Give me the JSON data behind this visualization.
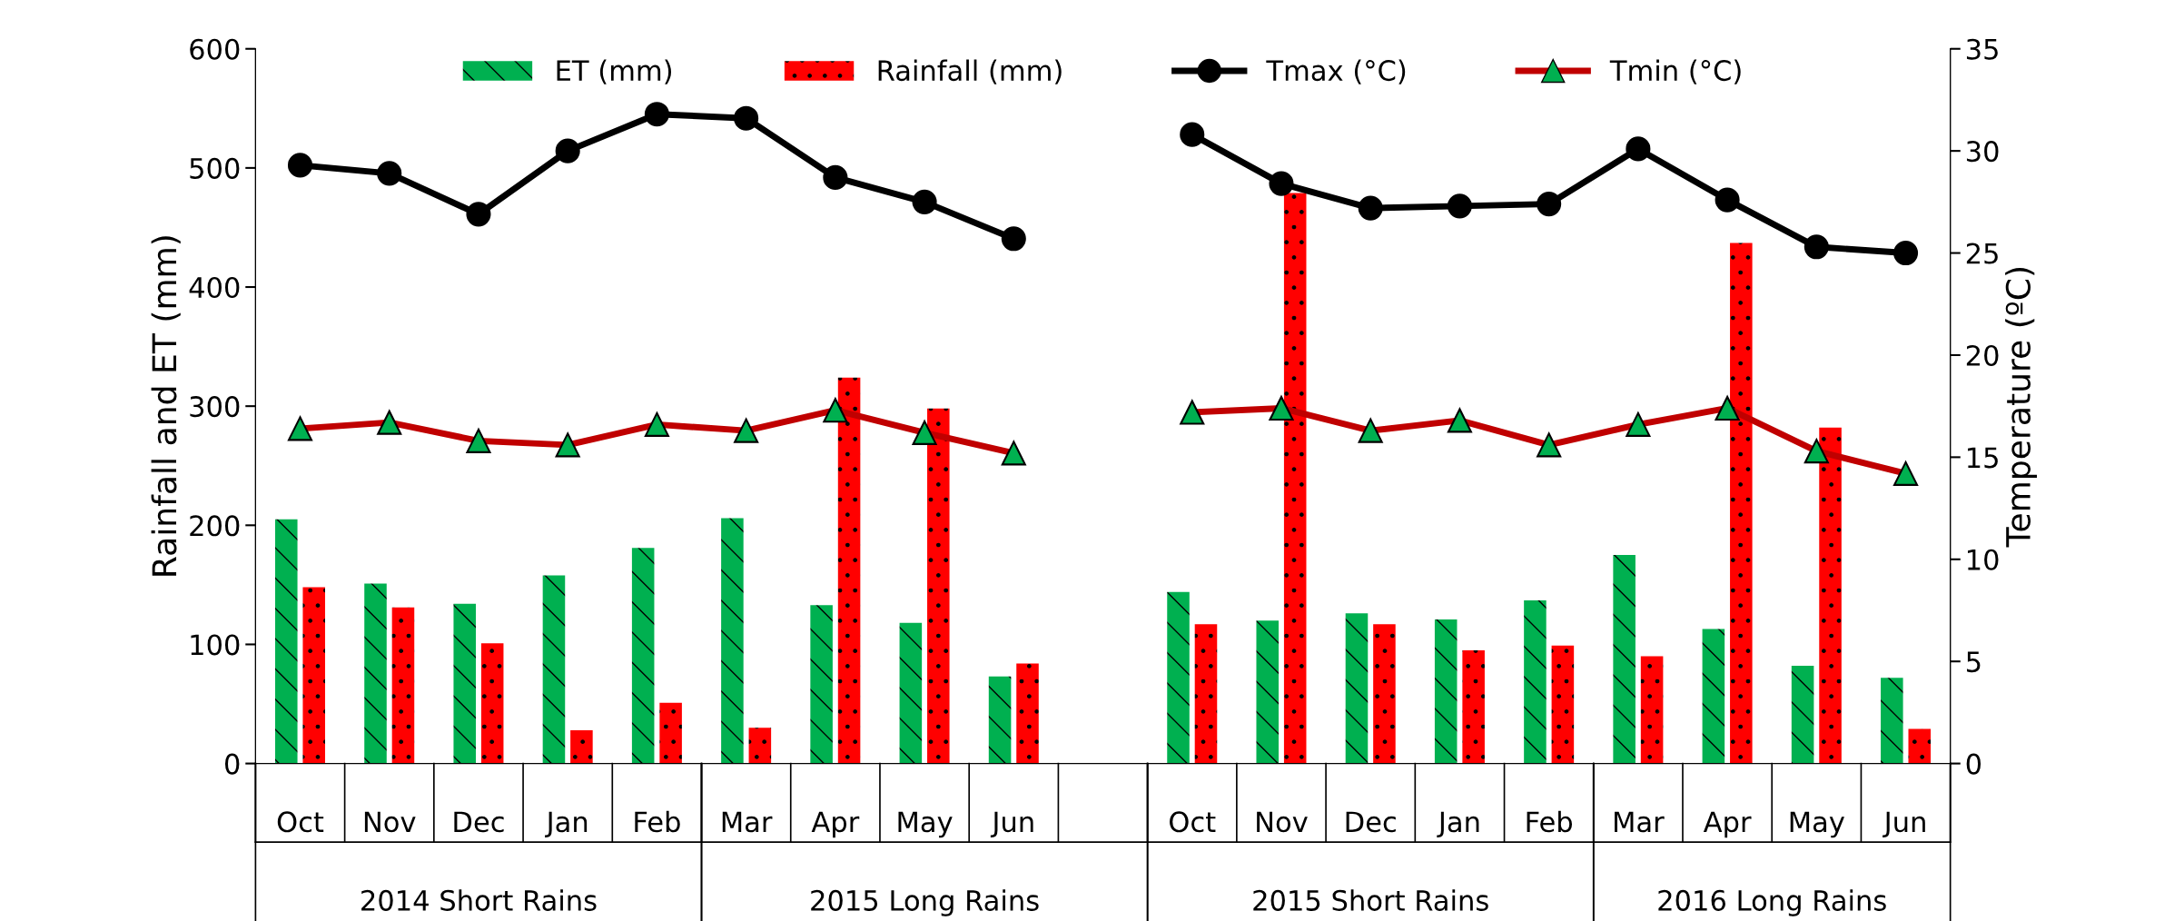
{
  "chart_data": {
    "type": "bar",
    "categories": [
      "Oct",
      "Nov",
      "Dec",
      "Jan",
      "Feb",
      "Mar",
      "Apr",
      "May",
      "Jun",
      null,
      "Oct",
      "Nov",
      "Dec",
      "Jan",
      "Feb",
      "Mar",
      "Apr",
      "May",
      "Jun"
    ],
    "ylabel": "Rainfall and ET (mm)",
    "y2label": "Temperature (ºC)",
    "ylim": [
      0,
      600
    ],
    "yticks": [
      0,
      100,
      200,
      300,
      400,
      500,
      600
    ],
    "y2lim": [
      0,
      35
    ],
    "y2ticks": [
      0,
      5,
      10,
      15,
      20,
      25,
      30,
      35
    ],
    "legend": "top",
    "grid": false,
    "series": [
      {
        "name": "ET (mm)",
        "type": "bar",
        "color": "#00b050",
        "values": [
          205,
          151,
          134,
          158,
          181,
          206,
          133,
          118,
          73,
          null,
          144,
          120,
          126,
          121,
          137,
          175,
          113,
          82,
          72
        ]
      },
      {
        "name": "Rainfall (mm)",
        "type": "bar",
        "color": "#ff0000",
        "values": [
          148,
          131,
          101,
          28,
          51,
          30,
          324,
          298,
          84,
          null,
          117,
          479,
          117,
          95,
          99,
          90,
          437,
          282,
          29
        ]
      },
      {
        "name": "Tmax (°C)",
        "type": "line",
        "axis": "y2",
        "color": "#000000",
        "marker": "circle",
        "values": [
          29.3,
          28.9,
          26.9,
          30.0,
          31.8,
          31.6,
          28.7,
          27.5,
          25.7,
          null,
          30.8,
          28.4,
          27.2,
          27.3,
          27.4,
          30.1,
          27.6,
          25.3,
          25.0
        ]
      },
      {
        "name": "Tmin (°C)",
        "type": "line",
        "axis": "y2",
        "color": "#c00000",
        "marker": "triangle",
        "values": [
          16.4,
          16.7,
          15.8,
          15.6,
          16.6,
          16.3,
          17.3,
          16.2,
          15.2,
          null,
          17.2,
          17.4,
          16.3,
          16.8,
          15.6,
          16.6,
          17.4,
          15.3,
          14.2
        ]
      }
    ],
    "annotations": [
      "2014 Short Rains",
      "2015 Long Rains",
      "2015 Short Rains",
      "2016 Long Rains"
    ]
  }
}
